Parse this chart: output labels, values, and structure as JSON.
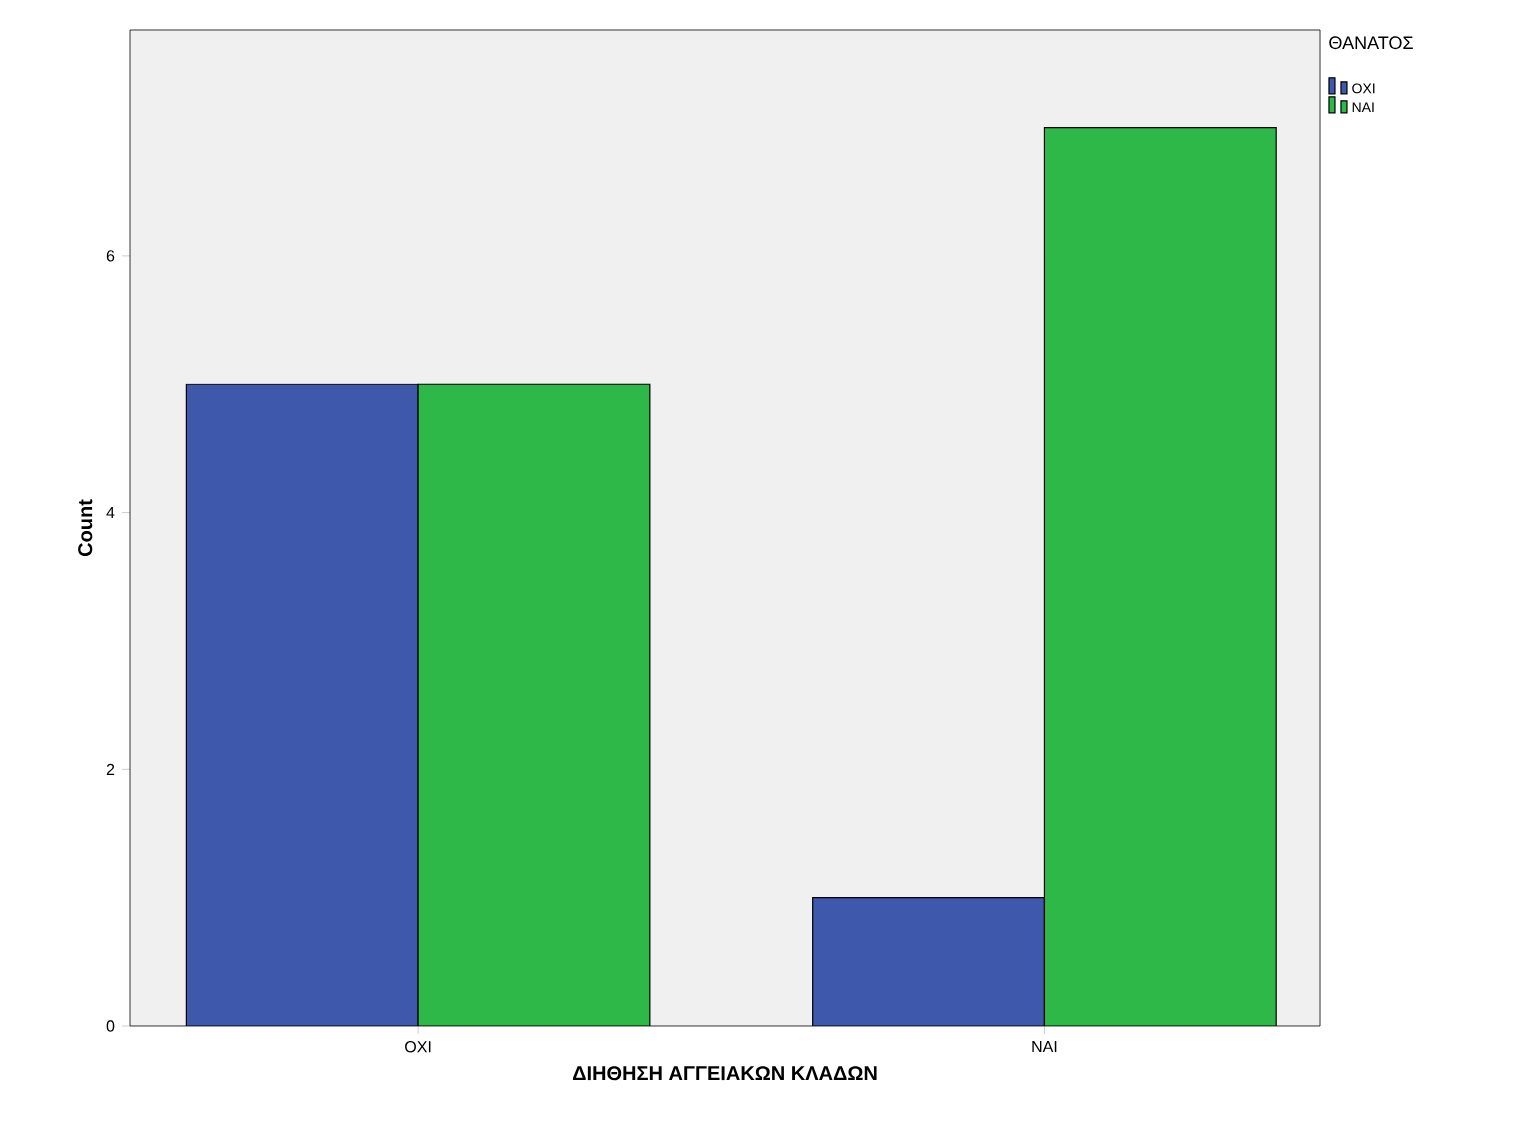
{
  "chart_data": {
    "type": "bar",
    "xlabel": "ΔΙΗΘΗΣΗ ΑΓΓΕΙΑΚΩΝ ΚΛΑΔΩΝ",
    "ylabel": "Count",
    "legend_title": "ΘΑΝΑΤΟΣ",
    "categories": [
      "ΟΧΙ",
      "ΝΑΙ"
    ],
    "series": [
      {
        "name": "ΟΧΙ",
        "color": "#3e58ac",
        "values": [
          5,
          1
        ]
      },
      {
        "name": "ΝΑΙ",
        "color": "#2eb848",
        "values": [
          5,
          7
        ]
      }
    ],
    "ylim": [
      0,
      7.76
    ],
    "yticks": [
      0,
      2,
      4,
      6
    ],
    "grid": false,
    "legend": "top right"
  }
}
